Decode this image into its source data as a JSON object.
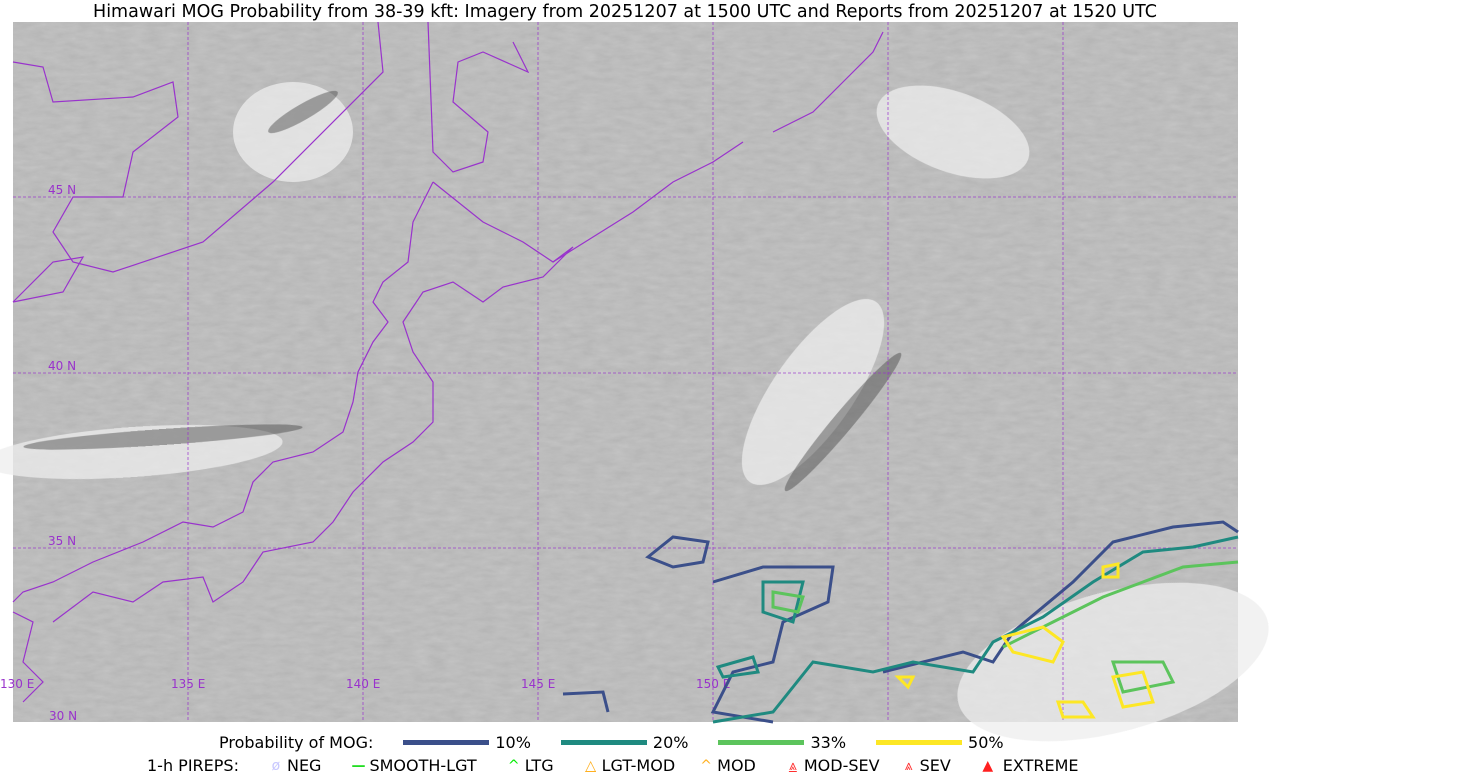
{
  "title": "Himawari MOG Probability from 38-39 kft: Imagery from 20251207 at 1500 UTC and Reports from 20251207 at 1520 UTC",
  "map": {
    "imagery": "grayscale satellite imagery",
    "gridline_color": "#9933cc",
    "lat_labels": [
      "45 N",
      "40 N",
      "35 N",
      "30 N"
    ],
    "lon_labels": [
      "130 E",
      "135 E",
      "140 E",
      "145 E",
      "150 E"
    ]
  },
  "legend": {
    "probability_label": "Probability of MOG:",
    "probability": [
      {
        "label": "10%",
        "color": "#3b4f8a"
      },
      {
        "label": "20%",
        "color": "#1f8a80"
      },
      {
        "label": "33%",
        "color": "#5cc45c"
      },
      {
        "label": "50%",
        "color": "#fde725"
      }
    ],
    "pireps_label": "1-h PIREPS:",
    "pireps": [
      {
        "label": "NEG",
        "color": "#c8c8ff",
        "icon": "neg-icon"
      },
      {
        "label": "SMOOTH-LGT",
        "color": "#22dd22",
        "icon": "line-icon"
      },
      {
        "label": "LTG",
        "color": "#00ee00",
        "icon": "caret-icon"
      },
      {
        "label": "LGT-MOD",
        "color": "#ffb020",
        "icon": "caret-bar-icon"
      },
      {
        "label": "MOD",
        "color": "#ffb020",
        "icon": "caret-icon"
      },
      {
        "label": "MOD-SEV",
        "color": "#ff3030",
        "icon": "double-caret-bar-icon"
      },
      {
        "label": "SEV",
        "color": "#ff3030",
        "icon": "double-caret-icon"
      },
      {
        "label": "EXTREME",
        "color": "#ff2020",
        "icon": "filled-triangle-icon"
      }
    ]
  }
}
